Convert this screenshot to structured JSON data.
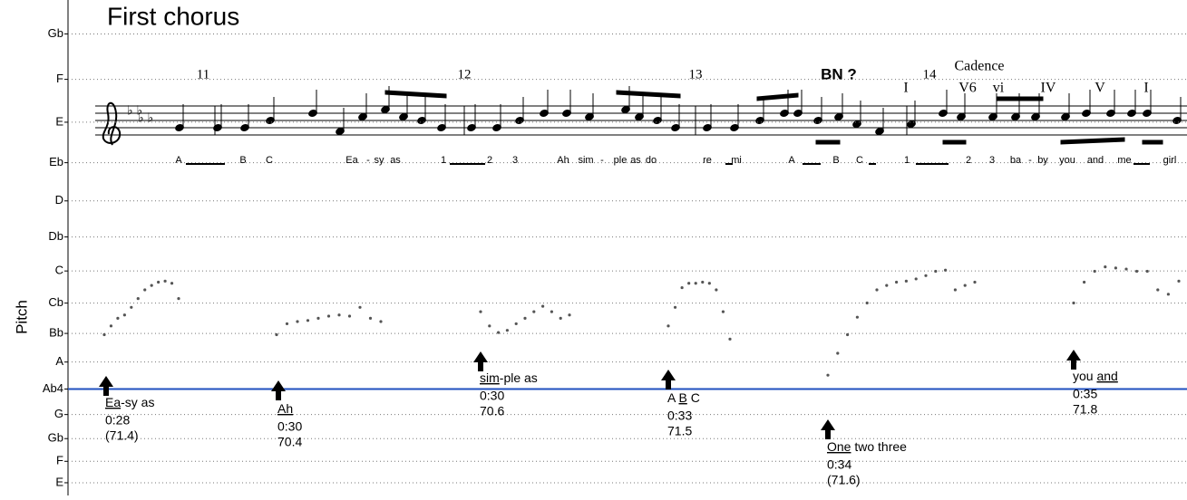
{
  "title": "First chorus",
  "y_label": "Pitch",
  "pitch_axis": {
    "ylim": [
      318,
      771
    ],
    "ticks": [
      {
        "value": 739.99,
        "label": "Gb"
      },
      {
        "value": 698.46,
        "label": "F"
      },
      {
        "value": 659.26,
        "label": "E"
      },
      {
        "value": 622.25,
        "label": "Eb"
      },
      {
        "value": 587.33,
        "label": "D"
      },
      {
        "value": 554.37,
        "label": "Db"
      },
      {
        "value": 523.25,
        "label": "C"
      },
      {
        "value": 493.88,
        "label": "Cb"
      },
      {
        "value": 466.16,
        "label": "Bb"
      },
      {
        "value": 440,
        "label": "A"
      },
      {
        "value": 415.3,
        "label": "Ab4"
      },
      {
        "value": 392,
        "label": "G"
      },
      {
        "value": 369.99,
        "label": "Gb"
      },
      {
        "value": 349.23,
        "label": "F"
      },
      {
        "value": 329.63,
        "label": "E"
      }
    ],
    "grid": true,
    "reference_line": 415.3,
    "reference_color": "#1f4fbf"
  },
  "trace_color": "#555555",
  "traces": [
    {
      "values": [
        465,
        473,
        480,
        483,
        490,
        498,
        506,
        510,
        513,
        514,
        512,
        498
      ]
    },
    {
      "values": [
        465,
        475,
        477,
        478,
        480,
        482,
        483,
        482,
        490,
        480,
        477
      ]
    },
    {
      "values": [
        486,
        473,
        467,
        469,
        475,
        480,
        486,
        491,
        486,
        480,
        483
      ]
    },
    {
      "values": [
        473,
        490,
        508,
        512,
        512,
        513,
        512,
        506,
        486,
        461
      ]
    },
    {
      "values": [
        428,
        448,
        465,
        481,
        494,
        506,
        510,
        513,
        514,
        516,
        519,
        523,
        524,
        506,
        510,
        513
      ]
    },
    {
      "values": [
        494,
        513,
        523,
        527,
        526,
        525,
        523,
        523,
        506,
        502,
        514
      ]
    }
  ],
  "score": {
    "measures": [
      "11",
      "12",
      "13",
      "14"
    ],
    "annotation": "BN ?",
    "cadence": "Cadence",
    "chords": [
      "I",
      "V6",
      "vi",
      "IV",
      "V",
      "I"
    ],
    "lyrics": [
      "A",
      "B",
      "C",
      "Ea",
      "-",
      "sy",
      "as",
      "1",
      "2",
      "3",
      "Ah",
      "sim",
      "-",
      "ple",
      "as",
      "do",
      "re",
      "mi",
      "A",
      "B",
      "C",
      "1",
      "2",
      "3",
      "ba",
      "-",
      "by",
      "you",
      "and",
      "me",
      "girl"
    ]
  },
  "annotations": [
    {
      "parts": [
        {
          "text": "Ea",
          "underline": true
        },
        {
          "text": "-sy as",
          "underline": false
        }
      ],
      "time": "0:28",
      "value": "(71.4)"
    },
    {
      "parts": [
        {
          "text": "Ah",
          "underline": true
        }
      ],
      "time": "0:30",
      "value": "70.4"
    },
    {
      "parts": [
        {
          "text": "sim",
          "underline": true
        },
        {
          "text": "-ple as",
          "underline": false
        }
      ],
      "time": "0:30",
      "value": "70.6"
    },
    {
      "parts": [
        {
          "text": "A ",
          "underline": false
        },
        {
          "text": "B",
          "underline": true
        },
        {
          "text": " C",
          "underline": false
        }
      ],
      "time": "0:33",
      "value": "71.5"
    },
    {
      "parts": [
        {
          "text": "One",
          "underline": true
        },
        {
          "text": " two three",
          "underline": false
        }
      ],
      "time": "0:34",
      "value": "(71.6)"
    },
    {
      "parts": [
        {
          "text": "you ",
          "underline": false
        },
        {
          "text": "and",
          "underline": true
        }
      ],
      "time": "0:35",
      "value": "71.8"
    }
  ]
}
